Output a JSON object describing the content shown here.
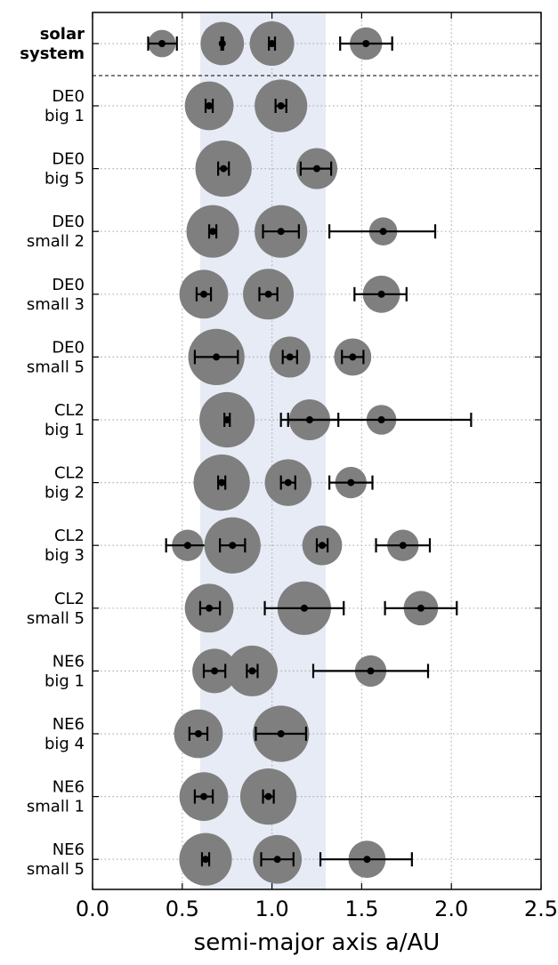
{
  "chart_data": {
    "type": "scatter",
    "title": "",
    "xlabel": "semi-major axis a/AU",
    "ylabel": "",
    "xlim": [
      0.0,
      2.5
    ],
    "x_ticks": [
      "0.0",
      "0.5",
      "1.0",
      "1.5",
      "2.0",
      "2.5"
    ],
    "x_tick_values": [
      0.0,
      0.5,
      1.0,
      1.5,
      2.0,
      2.5
    ],
    "grid": true,
    "habitable_band": {
      "from": 0.6,
      "to": 1.3,
      "color": "#e6ebf5"
    },
    "colors": {
      "planet": "#7f7f7f",
      "marker": "#000000"
    },
    "rows": [
      {
        "label": [
          "solar",
          "system"
        ],
        "bold": true,
        "planets": [
          {
            "a": 0.387,
            "size": 0.38,
            "lo": 0.31,
            "hi": 0.47
          },
          {
            "a": 0.723,
            "size": 0.95,
            "lo": 0.718,
            "hi": 0.728
          },
          {
            "a": 1.0,
            "size": 1.0,
            "lo": 0.983,
            "hi": 1.017
          },
          {
            "a": 1.524,
            "size": 0.53,
            "lo": 1.38,
            "hi": 1.67
          }
        ]
      },
      {
        "label": [
          "DE0",
          "big 1"
        ],
        "bold": false,
        "planets": [
          {
            "a": 0.65,
            "size": 1.2,
            "lo": 0.63,
            "hi": 0.67
          },
          {
            "a": 1.05,
            "size": 1.4,
            "lo": 1.02,
            "hi": 1.08
          }
        ]
      },
      {
        "label": [
          "DE0",
          "big 5"
        ],
        "bold": false,
        "planets": [
          {
            "a": 0.73,
            "size": 1.6,
            "lo": 0.7,
            "hi": 0.76
          },
          {
            "a": 1.25,
            "size": 0.85,
            "lo": 1.16,
            "hi": 1.33
          }
        ]
      },
      {
        "label": [
          "DE0",
          "small 2"
        ],
        "bold": false,
        "planets": [
          {
            "a": 0.67,
            "size": 1.4,
            "lo": 0.65,
            "hi": 0.69
          },
          {
            "a": 1.05,
            "size": 1.4,
            "lo": 0.95,
            "hi": 1.15
          },
          {
            "a": 1.62,
            "size": 0.4,
            "lo": 1.32,
            "hi": 1.91
          }
        ]
      },
      {
        "label": [
          "DE0",
          "small 3"
        ],
        "bold": false,
        "planets": [
          {
            "a": 0.62,
            "size": 1.2,
            "lo": 0.58,
            "hi": 0.66
          },
          {
            "a": 0.98,
            "size": 1.3,
            "lo": 0.93,
            "hi": 1.03
          },
          {
            "a": 1.61,
            "size": 0.7,
            "lo": 1.46,
            "hi": 1.75
          }
        ]
      },
      {
        "label": [
          "DE0",
          "small 5"
        ],
        "bold": false,
        "planets": [
          {
            "a": 0.69,
            "size": 1.6,
            "lo": 0.57,
            "hi": 0.81
          },
          {
            "a": 1.1,
            "size": 0.85,
            "lo": 1.06,
            "hi": 1.14
          },
          {
            "a": 1.45,
            "size": 0.7,
            "lo": 1.39,
            "hi": 1.51
          }
        ]
      },
      {
        "label": [
          "CL2",
          "big 1"
        ],
        "bold": false,
        "planets": [
          {
            "a": 0.75,
            "size": 1.55,
            "lo": 0.735,
            "hi": 0.765
          },
          {
            "a": 1.21,
            "size": 0.85,
            "lo": 1.05,
            "hi": 1.37
          },
          {
            "a": 1.61,
            "size": 0.45,
            "lo": 1.09,
            "hi": 2.11
          }
        ]
      },
      {
        "label": [
          "CL2",
          "big 2"
        ],
        "bold": false,
        "planets": [
          {
            "a": 0.72,
            "size": 1.6,
            "lo": 0.7,
            "hi": 0.74
          },
          {
            "a": 1.09,
            "size": 1.1,
            "lo": 1.05,
            "hi": 1.13
          },
          {
            "a": 1.44,
            "size": 0.5,
            "lo": 1.32,
            "hi": 1.56
          }
        ]
      },
      {
        "label": [
          "CL2",
          "big 3"
        ],
        "bold": false,
        "planets": [
          {
            "a": 0.53,
            "size": 0.5,
            "lo": 0.41,
            "hi": 0.65
          },
          {
            "a": 0.78,
            "size": 1.6,
            "lo": 0.71,
            "hi": 0.85
          },
          {
            "a": 1.28,
            "size": 0.8,
            "lo": 1.25,
            "hi": 1.31
          },
          {
            "a": 1.73,
            "size": 0.5,
            "lo": 1.58,
            "hi": 1.88
          }
        ]
      },
      {
        "label": [
          "CL2",
          "small 5"
        ],
        "bold": false,
        "planets": [
          {
            "a": 0.65,
            "size": 1.2,
            "lo": 0.6,
            "hi": 0.71
          },
          {
            "a": 1.18,
            "size": 1.45,
            "lo": 0.96,
            "hi": 1.4
          },
          {
            "a": 1.83,
            "size": 0.6,
            "lo": 1.63,
            "hi": 2.03
          }
        ]
      },
      {
        "label": [
          "NE6",
          "big 1"
        ],
        "bold": false,
        "planets": [
          {
            "a": 0.68,
            "size": 1.0,
            "lo": 0.62,
            "hi": 0.74
          },
          {
            "a": 0.89,
            "size": 1.3,
            "lo": 0.86,
            "hi": 0.92
          },
          {
            "a": 1.55,
            "size": 0.5,
            "lo": 1.23,
            "hi": 1.87
          }
        ]
      },
      {
        "label": [
          "NE6",
          "big 4"
        ],
        "bold": false,
        "planets": [
          {
            "a": 0.59,
            "size": 1.2,
            "lo": 0.54,
            "hi": 0.64
          },
          {
            "a": 1.05,
            "size": 1.6,
            "lo": 0.91,
            "hi": 1.19
          }
        ]
      },
      {
        "label": [
          "NE6",
          "small 1"
        ],
        "bold": false,
        "planets": [
          {
            "a": 0.62,
            "size": 1.2,
            "lo": 0.57,
            "hi": 0.67
          },
          {
            "a": 0.98,
            "size": 1.6,
            "lo": 0.95,
            "hi": 1.01
          }
        ]
      },
      {
        "label": [
          "NE6",
          "small 5"
        ],
        "bold": false,
        "planets": [
          {
            "a": 0.63,
            "size": 1.4,
            "lo": 0.61,
            "hi": 0.65
          },
          {
            "a": 1.03,
            "size": 1.2,
            "lo": 0.94,
            "hi": 1.12
          },
          {
            "a": 1.53,
            "size": 0.7,
            "lo": 1.27,
            "hi": 1.78
          }
        ]
      }
    ]
  }
}
